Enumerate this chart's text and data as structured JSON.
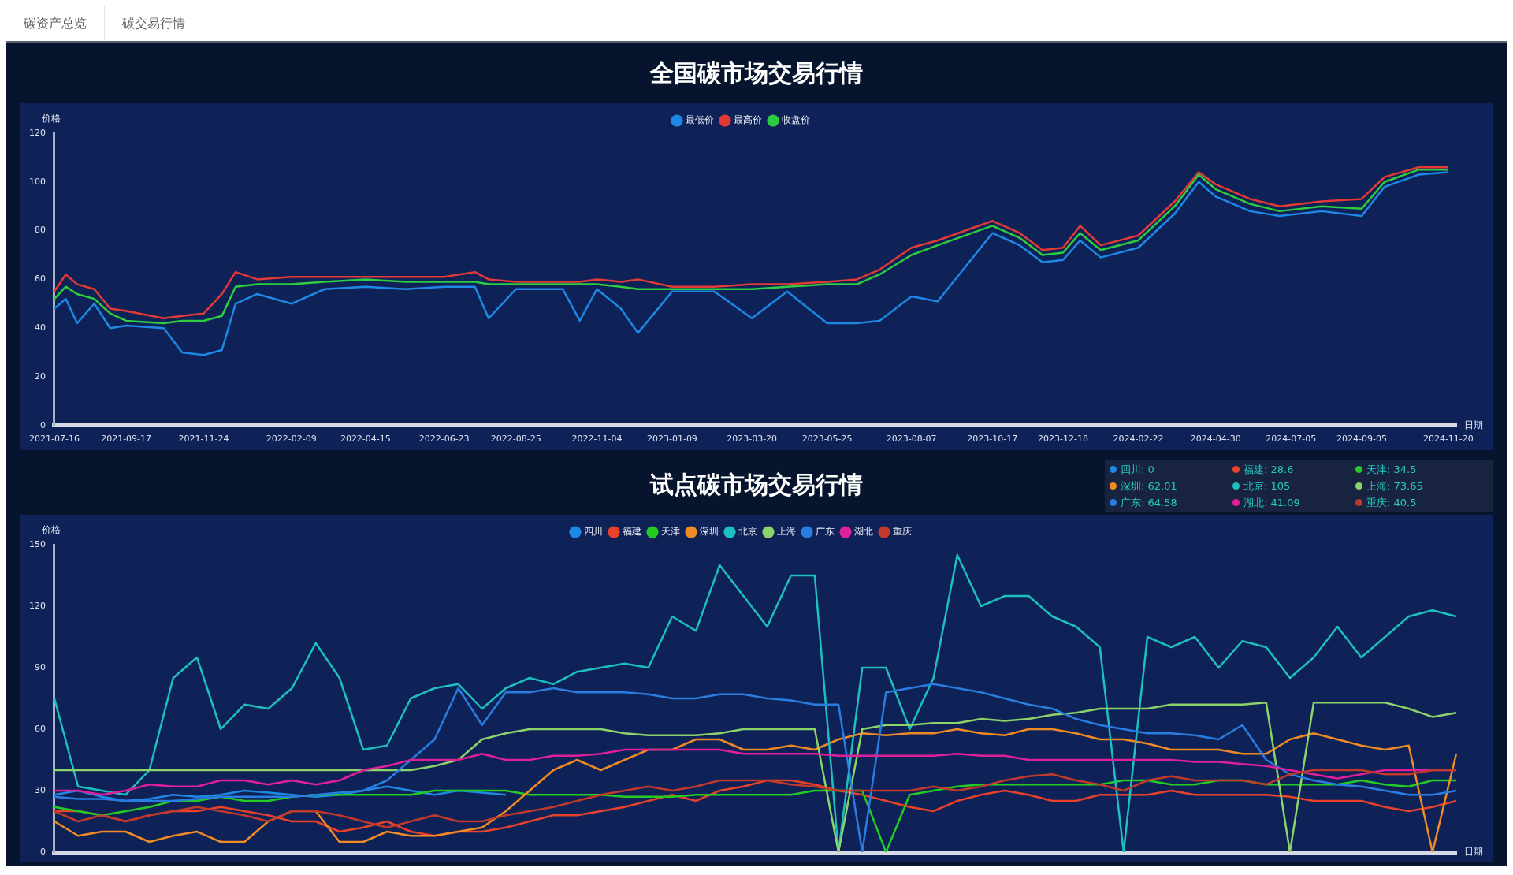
{
  "chart_data": [
    {
      "type": "other",
      "annotations": [
        "碳资产总览",
        "碳交易行情"
      ]
    },
    {
      "type": "line",
      "title": "全国碳市场交易行情",
      "ylabel": "价格",
      "xlabel": "日期",
      "legend": "top",
      "ylim": [
        0,
        120
      ],
      "yticks": [
        0,
        20,
        40,
        60,
        80,
        100,
        120
      ],
      "xlim": [
        "2021-07-16",
        "2024-11-27"
      ],
      "xticks": [
        "2021-07-16",
        "2021-09-17",
        "2021-11-24",
        "2022-02-09",
        "2022-04-15",
        "2022-06-23",
        "2022-08-25",
        "2022-11-04",
        "2023-01-09",
        "2023-03-20",
        "2023-05-25",
        "2023-08-07",
        "2023-10-17",
        "2023-12-18",
        "2024-02-22",
        "2024-04-30",
        "2024-07-05",
        "2024-09-05",
        "2024-11-20"
      ],
      "x": [
        "2021-07-16",
        "2021-07-26",
        "2021-08-05",
        "2021-08-20",
        "2021-09-03",
        "2021-09-17",
        "2021-10-20",
        "2021-11-05",
        "2021-11-24",
        "2021-12-10",
        "2021-12-22",
        "2022-01-10",
        "2022-02-09",
        "2022-03-10",
        "2022-04-15",
        "2022-05-20",
        "2022-06-23",
        "2022-07-20",
        "2022-08-01",
        "2022-08-25",
        "2022-10-05",
        "2022-10-20",
        "2022-11-04",
        "2022-11-25",
        "2022-12-10",
        "2023-01-09",
        "2023-02-15",
        "2023-03-20",
        "2023-04-20",
        "2023-05-25",
        "2023-06-20",
        "2023-07-10",
        "2023-08-07",
        "2023-08-30",
        "2023-10-17",
        "2023-11-10",
        "2023-11-30",
        "2023-12-18",
        "2024-01-02",
        "2024-01-20",
        "2024-02-22",
        "2024-03-25",
        "2024-04-15",
        "2024-04-30",
        "2024-05-30",
        "2024-06-25",
        "2024-08-01",
        "2024-09-05",
        "2024-09-25",
        "2024-10-25",
        "2024-11-20"
      ],
      "series": [
        {
          "name": "最低价",
          "color": "#1e88e5",
          "values": [
            48,
            52,
            42,
            50,
            40,
            41,
            40,
            30,
            29,
            31,
            50,
            54,
            50,
            56,
            57,
            56,
            57,
            57,
            44,
            56,
            56,
            43,
            56,
            48,
            38,
            55,
            55,
            44,
            55,
            42,
            42,
            43,
            53,
            51,
            79,
            74,
            67,
            68,
            76,
            69,
            73,
            87,
            100,
            94,
            88,
            86,
            88,
            86,
            98,
            103,
            104
          ]
        },
        {
          "name": "最高价",
          "color": "#e53935",
          "values": [
            55,
            62,
            58,
            56,
            48,
            47,
            44,
            45,
            46,
            54,
            63,
            60,
            61,
            61,
            61,
            61,
            61,
            63,
            60,
            59,
            59,
            59,
            60,
            59,
            60,
            57,
            57,
            58,
            58,
            59,
            60,
            64,
            73,
            76,
            84,
            79,
            72,
            73,
            82,
            74,
            78,
            92,
            104,
            99,
            93,
            90,
            92,
            93,
            102,
            106,
            106
          ]
        },
        {
          "name": "收盘价",
          "color": "#2ecc40",
          "values": [
            52,
            57,
            54,
            52,
            46,
            43,
            42,
            43,
            43,
            45,
            57,
            58,
            58,
            59,
            60,
            59,
            59,
            59,
            58,
            58,
            58,
            58,
            58,
            57,
            56,
            56,
            56,
            56,
            57,
            58,
            58,
            62,
            70,
            74,
            82,
            77,
            70,
            71,
            79,
            72,
            76,
            90,
            103,
            97,
            91,
            88,
            90,
            89,
            100,
            105,
            105
          ]
        }
      ]
    },
    {
      "type": "line",
      "title": "试点碳市场交易行情",
      "ylabel": "价格",
      "xlabel": "日期",
      "legend": "top",
      "tick_labels": "y",
      "ylim": [
        0,
        150
      ],
      "yticks": [
        0,
        30,
        60,
        90,
        120,
        150
      ],
      "annotations": [
        "四川: 0",
        "福建: 28.6",
        "天津: 34.5",
        "深圳: 62.01",
        "北京: 105",
        "上海: 73.65",
        "广东: 64.58",
        "湖北: 41.09",
        "重庆: 40.5"
      ],
      "categories": [
        null,
        null,
        null,
        null,
        null,
        null,
        null,
        null,
        null,
        null,
        null,
        null,
        null,
        null,
        null,
        null,
        null,
        null,
        null,
        null,
        null,
        null,
        null,
        null,
        null,
        null,
        null,
        null,
        null,
        null,
        null,
        null,
        null,
        null,
        null,
        null,
        null,
        null,
        null,
        null,
        null,
        null,
        null,
        null,
        null,
        null,
        null,
        null,
        null,
        null,
        null,
        null,
        null,
        null,
        null,
        null,
        null,
        null,
        null,
        null
      ],
      "series": [
        {
          "name": "四川",
          "color": "#1e88e5",
          "values": [
            28,
            30,
            27,
            25,
            26,
            28,
            27,
            28,
            30,
            29,
            28,
            27,
            28,
            30,
            32,
            30,
            28,
            30,
            29,
            28,
            null,
            null,
            null,
            null,
            null,
            null,
            null,
            null,
            null,
            null,
            null,
            null,
            null,
            null,
            null,
            null,
            null,
            null,
            null,
            null,
            null,
            null,
            null,
            null,
            null,
            null,
            null,
            null,
            null,
            null,
            null,
            null,
            null,
            null,
            null,
            null,
            null,
            null,
            null,
            null
          ]
        },
        {
          "name": "福建",
          "color": "#e8422b",
          "values": [
            20,
            20,
            18,
            15,
            18,
            20,
            20,
            22,
            20,
            18,
            15,
            15,
            10,
            12,
            15,
            10,
            8,
            10,
            10,
            12,
            15,
            18,
            18,
            20,
            22,
            25,
            28,
            25,
            30,
            32,
            35,
            35,
            33,
            30,
            28,
            25,
            22,
            20,
            25,
            28,
            30,
            28,
            25,
            25,
            28,
            28,
            28,
            30,
            28,
            28,
            28,
            28,
            27,
            25,
            25,
            25,
            22,
            20,
            22,
            25
          ]
        },
        {
          "name": "天津",
          "color": "#22cc22",
          "values": [
            22,
            20,
            18,
            20,
            22,
            25,
            25,
            27,
            25,
            25,
            27,
            28,
            28,
            28,
            28,
            28,
            30,
            30,
            30,
            30,
            28,
            28,
            28,
            28,
            27,
            27,
            27,
            28,
            28,
            28,
            28,
            28,
            30,
            30,
            30,
            0,
            28,
            30,
            32,
            33,
            33,
            33,
            33,
            33,
            33,
            35,
            35,
            33,
            33,
            35,
            35,
            33,
            33,
            33,
            33,
            35,
            33,
            32,
            35,
            35
          ]
        },
        {
          "name": "深圳",
          "color": "#f08a24",
          "values": [
            15,
            8,
            10,
            10,
            5,
            8,
            10,
            5,
            5,
            15,
            20,
            20,
            5,
            5,
            10,
            8,
            8,
            10,
            12,
            20,
            30,
            40,
            45,
            40,
            45,
            50,
            50,
            55,
            55,
            50,
            50,
            52,
            50,
            55,
            58,
            57,
            58,
            58,
            60,
            58,
            57,
            60,
            60,
            58,
            55,
            55,
            53,
            50,
            50,
            50,
            48,
            48,
            55,
            58,
            55,
            52,
            50,
            52,
            0,
            48
          ]
        },
        {
          "name": "北京",
          "color": "#1ebfbf",
          "values": [
            75,
            32,
            30,
            28,
            40,
            85,
            95,
            60,
            72,
            70,
            80,
            102,
            85,
            50,
            52,
            75,
            80,
            82,
            70,
            80,
            85,
            82,
            88,
            90,
            92,
            90,
            115,
            108,
            140,
            125,
            110,
            135,
            135,
            0,
            90,
            90,
            60,
            85,
            145,
            120,
            125,
            125,
            115,
            110,
            100,
            0,
            105,
            100,
            105,
            90,
            103,
            100,
            85,
            95,
            110,
            95,
            105,
            115,
            118,
            115
          ]
        },
        {
          "name": "上海",
          "color": "#8cd46a",
          "values": [
            40,
            40,
            40,
            40,
            40,
            40,
            40,
            40,
            40,
            40,
            40,
            40,
            40,
            40,
            40,
            40,
            42,
            45,
            55,
            58,
            60,
            60,
            60,
            60,
            58,
            57,
            57,
            57,
            58,
            60,
            60,
            60,
            60,
            0,
            60,
            62,
            62,
            63,
            63,
            65,
            64,
            65,
            67,
            68,
            70,
            70,
            70,
            72,
            72,
            72,
            72,
            73,
            0,
            73,
            73,
            73,
            73,
            70,
            66,
            68
          ]
        },
        {
          "name": "广东",
          "color": "#2a7de0",
          "values": [
            27,
            26,
            26,
            25,
            25,
            25,
            26,
            27,
            27,
            27,
            27,
            28,
            29,
            30,
            35,
            45,
            55,
            80,
            62,
            78,
            78,
            80,
            78,
            78,
            78,
            77,
            75,
            75,
            77,
            77,
            75,
            74,
            72,
            72,
            0,
            78,
            80,
            82,
            80,
            78,
            75,
            72,
            70,
            65,
            62,
            60,
            58,
            58,
            57,
            55,
            62,
            45,
            38,
            35,
            33,
            32,
            30,
            28,
            28,
            30
          ]
        },
        {
          "name": "湖北",
          "color": "#e0209a",
          "values": [
            30,
            30,
            28,
            30,
            33,
            32,
            32,
            35,
            35,
            33,
            35,
            33,
            35,
            40,
            42,
            45,
            45,
            45,
            48,
            45,
            45,
            47,
            47,
            48,
            50,
            50,
            50,
            50,
            50,
            48,
            48,
            48,
            48,
            47,
            47,
            47,
            47,
            47,
            48,
            47,
            47,
            45,
            45,
            45,
            45,
            45,
            45,
            45,
            44,
            44,
            43,
            42,
            40,
            38,
            36,
            38,
            40,
            40,
            40,
            40
          ]
        },
        {
          "name": "重庆",
          "color": "#c0392b",
          "values": [
            20,
            15,
            18,
            15,
            18,
            20,
            22,
            20,
            18,
            15,
            20,
            20,
            18,
            15,
            12,
            15,
            18,
            15,
            15,
            18,
            20,
            22,
            25,
            28,
            30,
            32,
            30,
            32,
            35,
            35,
            35,
            33,
            32,
            30,
            30,
            30,
            30,
            32,
            30,
            32,
            35,
            37,
            38,
            35,
            33,
            30,
            35,
            37,
            35,
            35,
            35,
            33,
            38,
            40,
            40,
            40,
            38,
            38,
            40,
            40
          ]
        }
      ]
    }
  ]
}
